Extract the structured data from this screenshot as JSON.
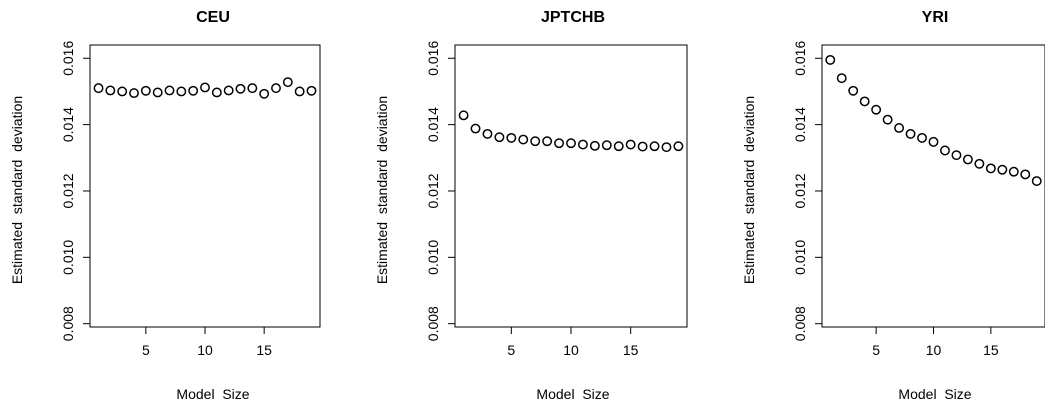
{
  "chart_data": [
    {
      "type": "scatter",
      "title": "CEU",
      "xlabel": "Model  Size",
      "ylabel": "Estimated  standard  deviation",
      "xlim": [
        0.28,
        19.72
      ],
      "ylim": [
        0.0079,
        0.0164
      ],
      "xticks": [
        "5",
        "10",
        "15"
      ],
      "yticks": [
        "0.008",
        "0.010",
        "0.012",
        "0.014",
        "0.016"
      ],
      "x": [
        1,
        2,
        3,
        4,
        5,
        6,
        7,
        8,
        9,
        10,
        11,
        12,
        13,
        14,
        15,
        16,
        17,
        18,
        19
      ],
      "y": [
        0.0151,
        0.01503,
        0.015,
        0.01495,
        0.01502,
        0.01497,
        0.01503,
        0.015,
        0.01502,
        0.01512,
        0.01497,
        0.01503,
        0.01508,
        0.0151,
        0.01493,
        0.0151,
        0.01528,
        0.015,
        0.01502
      ]
    },
    {
      "type": "scatter",
      "title": "JPTCHB",
      "xlabel": "Model  Size",
      "ylabel": "Estimated  standard  deviation",
      "xlim": [
        0.28,
        19.72
      ],
      "ylim": [
        0.0079,
        0.0164
      ],
      "xticks": [
        "5",
        "10",
        "15"
      ],
      "yticks": [
        "0.008",
        "0.010",
        "0.012",
        "0.014",
        "0.016"
      ],
      "x": [
        1,
        2,
        3,
        4,
        5,
        6,
        7,
        8,
        9,
        10,
        11,
        12,
        13,
        14,
        15,
        16,
        17,
        18,
        19
      ],
      "y": [
        0.01428,
        0.01388,
        0.01372,
        0.01362,
        0.0136,
        0.01355,
        0.0135,
        0.0135,
        0.01344,
        0.01344,
        0.0134,
        0.01336,
        0.01338,
        0.01335,
        0.0134,
        0.01334,
        0.01335,
        0.01332,
        0.01335
      ]
    },
    {
      "type": "scatter",
      "title": "YRI",
      "xlabel": "Model  Size",
      "ylabel": "Estimated  standard  deviation",
      "xlim": [
        0.28,
        19.72
      ],
      "ylim": [
        0.0079,
        0.0164
      ],
      "xticks": [
        "5",
        "10",
        "15"
      ],
      "yticks": [
        "0.008",
        "0.010",
        "0.012",
        "0.014",
        "0.016"
      ],
      "x": [
        1,
        2,
        3,
        4,
        5,
        6,
        7,
        8,
        9,
        10,
        11,
        12,
        13,
        14,
        15,
        16,
        17,
        18,
        19
      ],
      "y": [
        0.01595,
        0.0154,
        0.01502,
        0.0147,
        0.01445,
        0.01415,
        0.0139,
        0.01372,
        0.0136,
        0.01348,
        0.01322,
        0.01308,
        0.01295,
        0.01282,
        0.01268,
        0.01264,
        0.01258,
        0.0125,
        0.0123
      ]
    }
  ]
}
